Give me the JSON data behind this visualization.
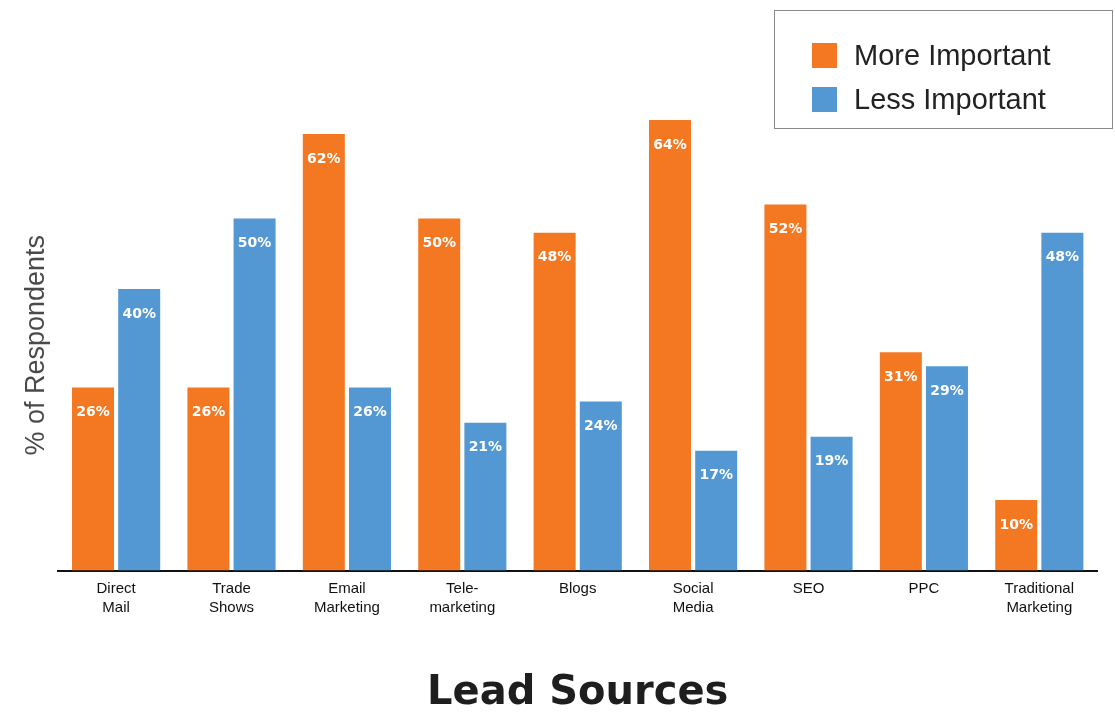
{
  "chart_data": {
    "type": "bar",
    "xlabel": "Lead Sources",
    "ylabel": "% of Respondents",
    "categories": [
      "Direct\nMail",
      "Trade\nShows",
      "Email\nMarketing",
      "Tele-\nmarketing",
      "Blogs",
      "Social\nMedia",
      "SEO",
      "PPC",
      "Traditional\nMarketing"
    ],
    "series": [
      {
        "name": "More Important",
        "color": "#f47721",
        "values": [
          26,
          26,
          62,
          50,
          48,
          64,
          52,
          31,
          10
        ],
        "value_labels": [
          "26%",
          "26%",
          "62%",
          "50%",
          "48%",
          "64%",
          "52%",
          "31%",
          "10%"
        ]
      },
      {
        "name": "Less Important",
        "color": "#5398d3",
        "values": [
          40,
          50,
          26,
          21,
          24,
          17,
          19,
          29,
          48
        ],
        "value_labels": [
          "40%",
          "50%",
          "26%",
          "21%",
          "24%",
          "17%",
          "19%",
          "29%",
          "48%"
        ]
      }
    ],
    "legend": "top right",
    "tick_labels": "x"
  }
}
